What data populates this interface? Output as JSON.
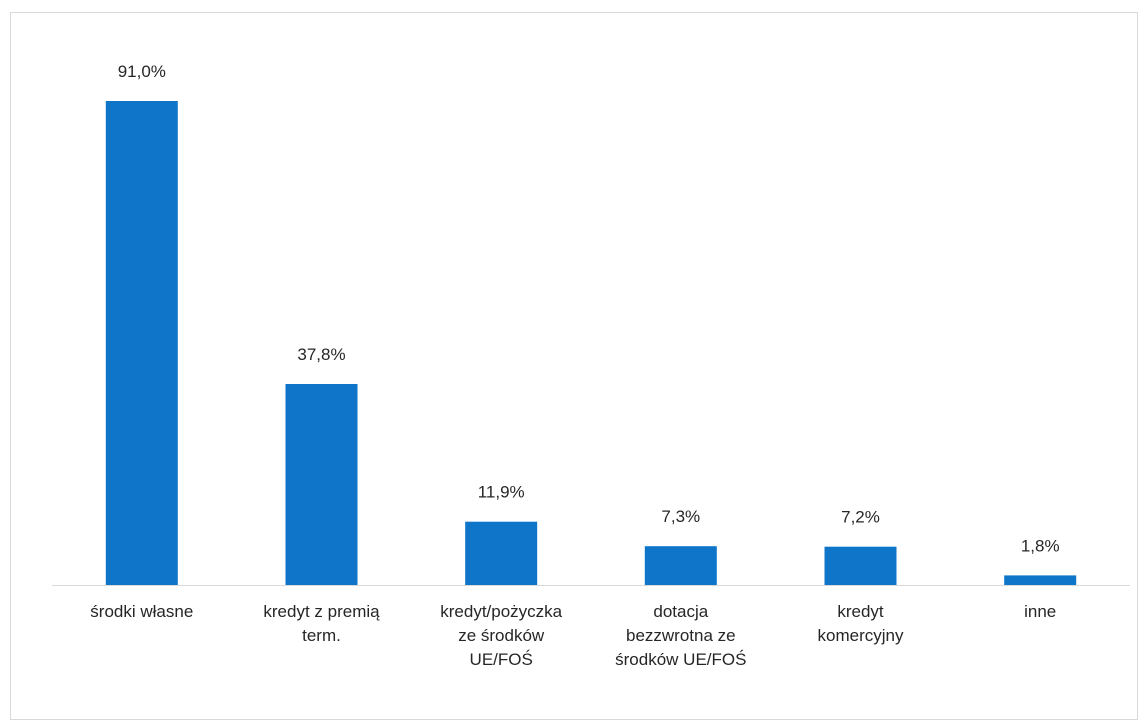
{
  "chart_data": {
    "type": "bar",
    "title": "",
    "xlabel": "",
    "ylabel": "",
    "ylim": [
      0,
      100
    ],
    "grid": false,
    "legend": "none",
    "bar_color": "#0f75c9",
    "axis_color": "#d9d9d9",
    "categories": [
      [
        "środki własne"
      ],
      [
        "kredyt z premią",
        "term."
      ],
      [
        "kredyt/pożyczka",
        "ze środków",
        "UE/FOŚ"
      ],
      [
        "dotacja",
        "bezzwrotna ze",
        "środków UE/FOŚ"
      ],
      [
        "kredyt",
        "komercyjny"
      ],
      [
        "inne"
      ]
    ],
    "values": [
      91.0,
      37.8,
      11.9,
      7.3,
      7.2,
      1.8
    ],
    "value_labels": [
      "91,0%",
      "37,8%",
      "11,9%",
      "7,3%",
      "7,2%",
      "1,8%"
    ]
  }
}
